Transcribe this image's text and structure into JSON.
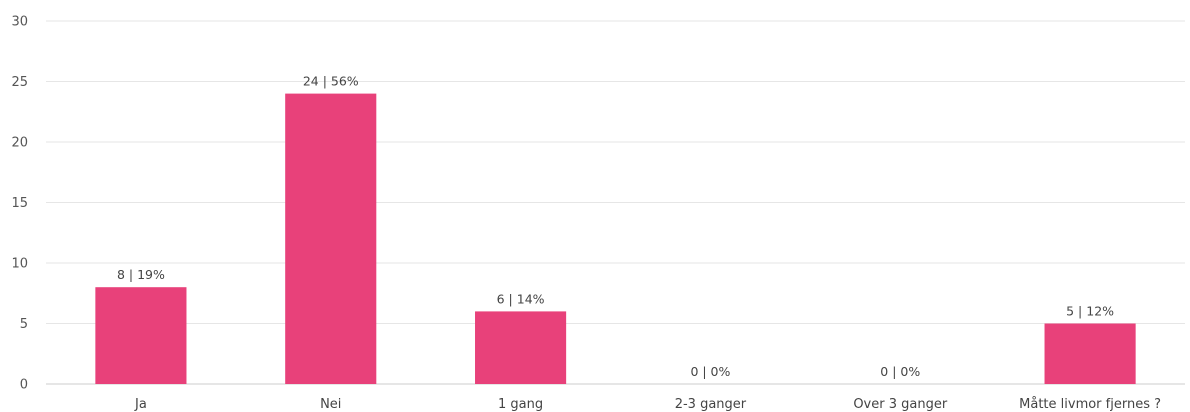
{
  "chart_data": {
    "type": "bar",
    "categories": [
      "Ja",
      "Nei",
      "1 gang",
      "2-3 ganger",
      "Over 3 ganger",
      "Måtte livmor fjernes ?"
    ],
    "values": [
      8,
      24,
      6,
      0,
      0,
      5
    ],
    "data_labels": [
      "8 | 19%",
      "24 | 56%",
      "6 | 14%",
      "0 | 0%",
      "0 | 0%",
      "5 | 12%"
    ],
    "y_ticks": [
      "0",
      "5",
      "10",
      "15",
      "20",
      "25",
      "30"
    ],
    "ylim": [
      0,
      30
    ],
    "grid": true,
    "legend": "none",
    "bar_color": "#e8417a"
  }
}
